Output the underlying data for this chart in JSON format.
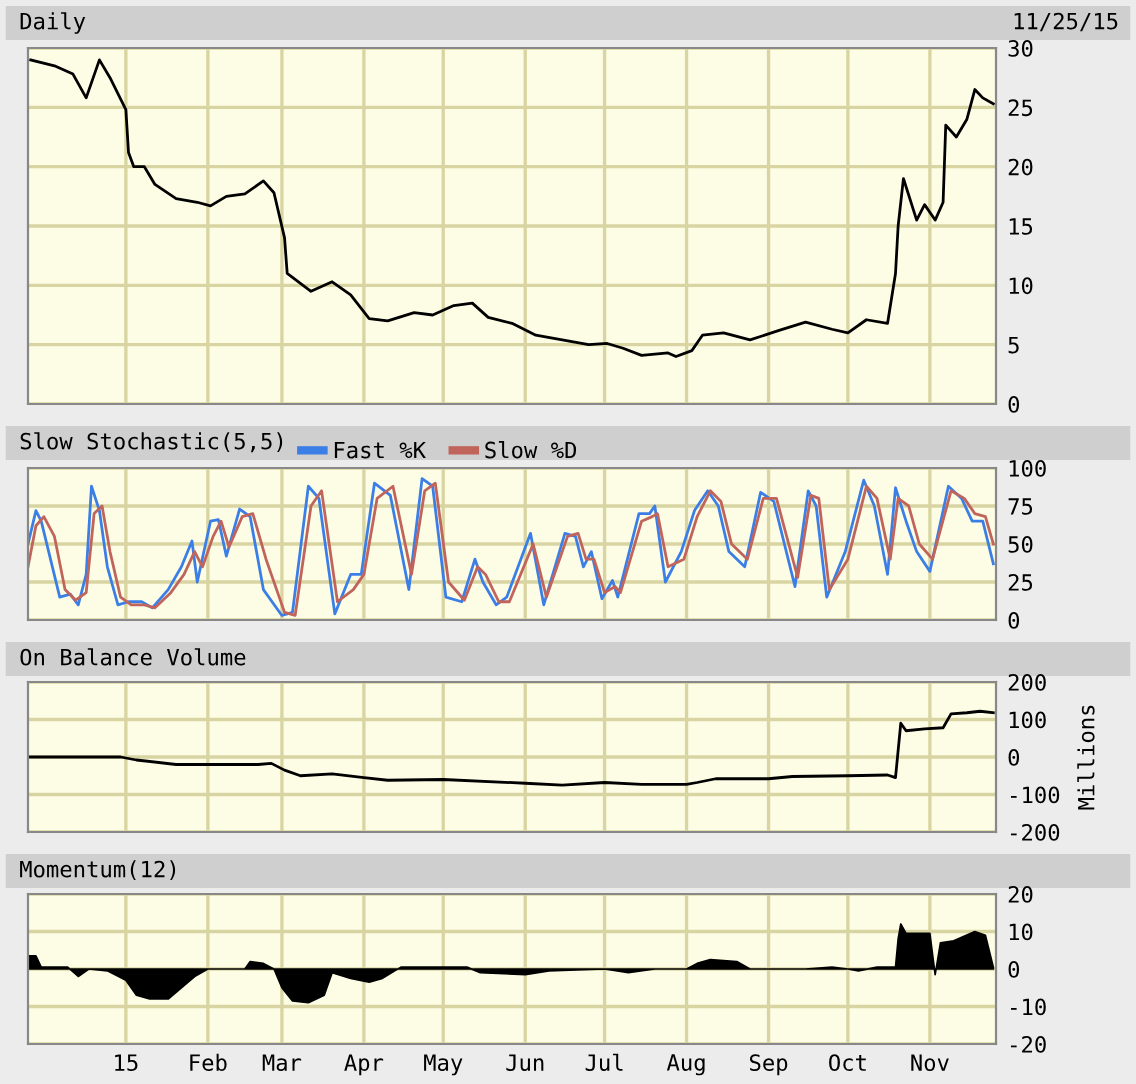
{
  "chart_data": [
    {
      "type": "line",
      "title": "Daily",
      "annotations": [
        "11/25/15"
      ],
      "xlim": [
        "2014-11-25",
        "2015-11-26"
      ],
      "ylim": [
        0,
        30
      ],
      "yticks": [
        0,
        5,
        10,
        15,
        20,
        25,
        30
      ],
      "xticks": [
        {
          "value": "2015-01-01",
          "label": null
        },
        {
          "value": "2015-02-01",
          "label": null
        },
        {
          "value": "2015-03-01",
          "label": null
        },
        {
          "value": "2015-04-01",
          "label": null
        },
        {
          "value": "2015-05-01",
          "label": null
        },
        {
          "value": "2015-06-01",
          "label": null
        },
        {
          "value": "2015-07-01",
          "label": null
        },
        {
          "value": "2015-08-01",
          "label": null
        },
        {
          "value": "2015-09-01",
          "label": null
        },
        {
          "value": "2015-10-01",
          "label": null
        },
        {
          "value": "2015-11-01",
          "label": null
        }
      ],
      "tick_labels": "y",
      "grid": true,
      "series": [
        {
          "color": "#000000",
          "x": [
            "2014-11-26",
            "2014-12-05",
            "2014-12-12",
            "2014-12-17",
            "2014-12-22",
            "2014-12-26",
            "2015-01-01",
            "2015-01-02",
            "2015-01-04",
            "2015-01-08",
            "2015-01-12",
            "2015-01-20",
            "2015-01-28",
            "2015-02-02",
            "2015-02-08",
            "2015-02-15",
            "2015-02-22",
            "2015-02-26",
            "2015-03-02",
            "2015-03-03",
            "2015-03-06",
            "2015-03-12",
            "2015-03-20",
            "2015-03-27",
            "2015-04-03",
            "2015-04-10",
            "2015-04-20",
            "2015-04-27",
            "2015-05-05",
            "2015-05-12",
            "2015-05-18",
            "2015-05-27",
            "2015-06-05",
            "2015-06-15",
            "2015-06-25",
            "2015-07-02",
            "2015-07-08",
            "2015-07-15",
            "2015-07-25",
            "2015-07-28",
            "2015-08-03",
            "2015-08-07",
            "2015-08-15",
            "2015-08-25",
            "2015-09-05",
            "2015-09-15",
            "2015-09-25",
            "2015-10-01",
            "2015-10-08",
            "2015-10-16",
            "2015-10-19",
            "2015-10-20",
            "2015-10-22",
            "2015-10-27",
            "2015-10-30",
            "2015-11-03",
            "2015-11-06",
            "2015-11-07",
            "2015-11-11",
            "2015-11-15",
            "2015-11-18",
            "2015-11-21",
            "2015-11-25"
          ],
          "values": [
            29,
            28.5,
            27.8,
            25.8,
            29,
            27.5,
            24.8,
            21.2,
            20,
            20,
            18.5,
            17.3,
            17,
            16.7,
            17.5,
            17.7,
            18.8,
            17.8,
            14,
            11,
            10.5,
            9.5,
            10.3,
            9.2,
            7.2,
            7,
            7.7,
            7.5,
            8.3,
            8.5,
            7.3,
            6.8,
            5.8,
            5.4,
            5,
            5.1,
            4.7,
            4.1,
            4.3,
            4,
            4.5,
            5.8,
            6,
            5.4,
            6.2,
            6.9,
            6.3,
            6,
            7.1,
            6.8,
            11,
            15,
            19,
            15.5,
            16.8,
            15.5,
            17,
            23.5,
            22.5,
            24,
            26.5,
            25.8,
            25.3
          ]
        }
      ]
    },
    {
      "type": "line",
      "title": "Slow Stochastic(5,5)",
      "xlim": [
        "2014-11-25",
        "2015-11-26"
      ],
      "ylim": [
        0,
        100
      ],
      "yticks": [
        0,
        25,
        50,
        75,
        100
      ],
      "xticks": [
        {
          "value": "2015-01-01",
          "label": null
        },
        {
          "value": "2015-02-01",
          "label": null
        },
        {
          "value": "2015-03-01",
          "label": null
        },
        {
          "value": "2015-04-01",
          "label": null
        },
        {
          "value": "2015-05-01",
          "label": null
        },
        {
          "value": "2015-06-01",
          "label": null
        },
        {
          "value": "2015-07-01",
          "label": null
        },
        {
          "value": "2015-08-01",
          "label": null
        },
        {
          "value": "2015-09-01",
          "label": null
        },
        {
          "value": "2015-10-01",
          "label": null
        },
        {
          "value": "2015-11-01",
          "label": null
        }
      ],
      "tick_labels": "y",
      "grid": true,
      "legend": "top",
      "series": [
        {
          "name": "Fast %K",
          "color": "#3b7fe6",
          "x": [
            "2014-11-25",
            "2014-11-28",
            "2014-11-30",
            "2014-12-07",
            "2014-12-11",
            "2014-12-14",
            "2014-12-17",
            "2014-12-19",
            "2014-12-22",
            "2014-12-25",
            "2014-12-29",
            "2015-01-02",
            "2015-01-07",
            "2015-01-11",
            "2015-01-17",
            "2015-01-22",
            "2015-01-26",
            "2015-01-28",
            "2015-02-02",
            "2015-02-05",
            "2015-02-08",
            "2015-02-13",
            "2015-02-17",
            "2015-02-22",
            "2015-03-01",
            "2015-03-05",
            "2015-03-11",
            "2015-03-15",
            "2015-03-21",
            "2015-03-27",
            "2015-03-31",
            "2015-04-05",
            "2015-04-11",
            "2015-04-18",
            "2015-04-23",
            "2015-04-27",
            "2015-05-02",
            "2015-05-08",
            "2015-05-13",
            "2015-05-16",
            "2015-05-21",
            "2015-05-25",
            "2015-06-03",
            "2015-06-08",
            "2015-06-16",
            "2015-06-20",
            "2015-06-23",
            "2015-06-26",
            "2015-06-30",
            "2015-07-04",
            "2015-07-06",
            "2015-07-14",
            "2015-07-18",
            "2015-07-20",
            "2015-07-24",
            "2015-07-30",
            "2015-08-04",
            "2015-08-09",
            "2015-08-13",
            "2015-08-17",
            "2015-08-23",
            "2015-08-29",
            "2015-09-03",
            "2015-09-11",
            "2015-09-16",
            "2015-09-19",
            "2015-09-23",
            "2015-09-30",
            "2015-10-07",
            "2015-10-11",
            "2015-10-16",
            "2015-10-19",
            "2015-10-23",
            "2015-10-27",
            "2015-11-01",
            "2015-11-08",
            "2015-11-13",
            "2015-11-17",
            "2015-11-21",
            "2015-11-25"
          ],
          "values": [
            50,
            72,
            65,
            15,
            17,
            10,
            30,
            88,
            72,
            35,
            10,
            12,
            12,
            8,
            20,
            35,
            52,
            25,
            65,
            66,
            42,
            73,
            68,
            20,
            3,
            5,
            88,
            80,
            4,
            30,
            30,
            90,
            82,
            20,
            93,
            88,
            15,
            12,
            40,
            25,
            10,
            15,
            57,
            10,
            57,
            55,
            35,
            45,
            14,
            26,
            15,
            70,
            70,
            75,
            25,
            45,
            72,
            85,
            75,
            45,
            35,
            84,
            78,
            22,
            85,
            75,
            15,
            45,
            92,
            75,
            30,
            87,
            65,
            45,
            32,
            88,
            80,
            65,
            65,
            37
          ]
        },
        {
          "name": "Slow %D",
          "color": "#c0645c",
          "x": [
            "2014-11-25",
            "2014-11-28",
            "2014-12-01",
            "2014-12-05",
            "2014-12-09",
            "2014-12-13",
            "2014-12-17",
            "2014-12-20",
            "2014-12-23",
            "2014-12-26",
            "2014-12-30",
            "2015-01-03",
            "2015-01-08",
            "2015-01-12",
            "2015-01-18",
            "2015-01-23",
            "2015-01-27",
            "2015-01-30",
            "2015-02-03",
            "2015-02-06",
            "2015-02-09",
            "2015-02-14",
            "2015-02-18",
            "2015-02-23",
            "2015-03-02",
            "2015-03-06",
            "2015-03-12",
            "2015-03-16",
            "2015-03-22",
            "2015-03-28",
            "2015-04-01",
            "2015-04-06",
            "2015-04-12",
            "2015-04-19",
            "2015-04-24",
            "2015-04-28",
            "2015-05-03",
            "2015-05-09",
            "2015-05-14",
            "2015-05-17",
            "2015-05-22",
            "2015-05-26",
            "2015-06-04",
            "2015-06-09",
            "2015-06-17",
            "2015-06-21",
            "2015-06-24",
            "2015-06-27",
            "2015-07-01",
            "2015-07-05",
            "2015-07-07",
            "2015-07-15",
            "2015-07-19",
            "2015-07-21",
            "2015-07-25",
            "2015-07-31",
            "2015-08-05",
            "2015-08-10",
            "2015-08-14",
            "2015-08-18",
            "2015-08-24",
            "2015-08-30",
            "2015-09-04",
            "2015-09-12",
            "2015-09-17",
            "2015-09-20",
            "2015-09-24",
            "2015-10-01",
            "2015-10-08",
            "2015-10-12",
            "2015-10-17",
            "2015-10-20",
            "2015-10-24",
            "2015-10-28",
            "2015-11-02",
            "2015-11-09",
            "2015-11-14",
            "2015-11-18",
            "2015-11-22",
            "2015-11-25"
          ],
          "values": [
            35,
            62,
            68,
            55,
            20,
            13,
            18,
            70,
            75,
            45,
            15,
            10,
            10,
            8,
            18,
            30,
            45,
            35,
            55,
            65,
            48,
            68,
            70,
            40,
            5,
            3,
            75,
            85,
            12,
            20,
            30,
            80,
            88,
            30,
            85,
            90,
            25,
            13,
            35,
            30,
            12,
            12,
            50,
            15,
            55,
            57,
            40,
            40,
            18,
            22,
            18,
            65,
            68,
            70,
            35,
            40,
            68,
            85,
            78,
            50,
            40,
            80,
            80,
            28,
            82,
            80,
            20,
            40,
            88,
            80,
            40,
            80,
            75,
            50,
            40,
            85,
            80,
            70,
            68,
            50
          ]
        }
      ]
    },
    {
      "type": "line",
      "title": "On Balance Volume",
      "ylabel": "Millions",
      "xlim": [
        "2014-11-25",
        "2015-11-26"
      ],
      "ylim": [
        -200,
        200
      ],
      "yticks": [
        -200,
        -100,
        0,
        100,
        200
      ],
      "xticks": [
        {
          "value": "2015-01-01",
          "label": null
        },
        {
          "value": "2015-02-01",
          "label": null
        },
        {
          "value": "2015-03-01",
          "label": null
        },
        {
          "value": "2015-04-01",
          "label": null
        },
        {
          "value": "2015-05-01",
          "label": null
        },
        {
          "value": "2015-06-01",
          "label": null
        },
        {
          "value": "2015-07-01",
          "label": null
        },
        {
          "value": "2015-08-01",
          "label": null
        },
        {
          "value": "2015-09-01",
          "label": null
        },
        {
          "value": "2015-10-01",
          "label": null
        },
        {
          "value": "2015-11-01",
          "label": null
        }
      ],
      "tick_labels": "y",
      "grid": true,
      "series": [
        {
          "color": "#000000",
          "x": [
            "2014-11-25",
            "2014-12-30",
            "2015-01-05",
            "2015-01-20",
            "2015-02-20",
            "2015-02-25",
            "2015-03-02",
            "2015-03-08",
            "2015-03-20",
            "2015-04-01",
            "2015-04-10",
            "2015-05-01",
            "2015-06-01",
            "2015-06-15",
            "2015-07-01",
            "2015-07-15",
            "2015-08-01",
            "2015-08-05",
            "2015-08-12",
            "2015-09-01",
            "2015-09-10",
            "2015-10-01",
            "2015-10-16",
            "2015-10-19",
            "2015-10-21",
            "2015-10-23",
            "2015-10-30",
            "2015-11-06",
            "2015-11-09",
            "2015-11-15",
            "2015-11-20",
            "2015-11-25"
          ],
          "values": [
            0,
            0,
            -8,
            -20,
            -20,
            -17,
            -35,
            -50,
            -45,
            -55,
            -62,
            -60,
            -70,
            -75,
            -68,
            -73,
            -73,
            -68,
            -58,
            -58,
            -52,
            -50,
            -48,
            -55,
            90,
            70,
            75,
            78,
            115,
            118,
            122,
            118
          ]
        }
      ]
    },
    {
      "type": "area",
      "title": "Momentum(12)",
      "xlim": [
        "2014-11-25",
        "2015-11-26"
      ],
      "ylim": [
        -20,
        20
      ],
      "yticks": [
        -20,
        -10,
        0,
        10,
        20
      ],
      "xticks": [
        {
          "value": "2015-01-01",
          "label": "15"
        },
        {
          "value": "2015-02-01",
          "label": "Feb"
        },
        {
          "value": "2015-03-01",
          "label": "Mar"
        },
        {
          "value": "2015-04-01",
          "label": "Apr"
        },
        {
          "value": "2015-05-01",
          "label": "May"
        },
        {
          "value": "2015-06-01",
          "label": "Jun"
        },
        {
          "value": "2015-07-01",
          "label": "Jul"
        },
        {
          "value": "2015-08-01",
          "label": "Aug"
        },
        {
          "value": "2015-09-01",
          "label": "Sep"
        },
        {
          "value": "2015-10-01",
          "label": "Oct"
        },
        {
          "value": "2015-11-01",
          "label": "Nov"
        }
      ],
      "grid": true,
      "series": [
        {
          "color": "#000000",
          "x": [
            "2014-11-25",
            "2014-11-28",
            "2014-11-30",
            "2014-12-10",
            "2014-12-14",
            "2014-12-18",
            "2014-12-25",
            "2015-01-01",
            "2015-01-05",
            "2015-01-10",
            "2015-01-17",
            "2015-01-22",
            "2015-01-27",
            "2015-02-01",
            "2015-02-15",
            "2015-02-17",
            "2015-02-22",
            "2015-02-26",
            "2015-03-01",
            "2015-03-05",
            "2015-03-11",
            "2015-03-17",
            "2015-03-20",
            "2015-03-27",
            "2015-04-03",
            "2015-04-08",
            "2015-04-15",
            "2015-05-10",
            "2015-05-15",
            "2015-06-01",
            "2015-06-10",
            "2015-07-01",
            "2015-07-10",
            "2015-07-20",
            "2015-08-01",
            "2015-08-05",
            "2015-08-10",
            "2015-08-20",
            "2015-08-25",
            "2015-09-15",
            "2015-09-25",
            "2015-10-01",
            "2015-10-05",
            "2015-10-12",
            "2015-10-19",
            "2015-10-20",
            "2015-10-21",
            "2015-10-23",
            "2015-11-01",
            "2015-11-03",
            "2015-11-05",
            "2015-11-10",
            "2015-11-18",
            "2015-11-22",
            "2015-11-25"
          ],
          "values": [
            3.5,
            3.5,
            0.5,
            0.5,
            -2,
            0,
            -0.5,
            -3,
            -7,
            -8,
            -8,
            -5,
            -2,
            0,
            0,
            2,
            1.5,
            0,
            -5,
            -8.5,
            -9,
            -7,
            -1,
            -2.5,
            -3.5,
            -2.5,
            0.5,
            0.5,
            -1,
            -1.5,
            -0.5,
            0,
            -1,
            0,
            0,
            1.5,
            2.5,
            2,
            0,
            0,
            0.5,
            0,
            -0.5,
            0.5,
            0.5,
            8,
            12,
            9.5,
            9.5,
            -1.5,
            7,
            7.5,
            10,
            9,
            0.5
          ]
        }
      ]
    }
  ]
}
